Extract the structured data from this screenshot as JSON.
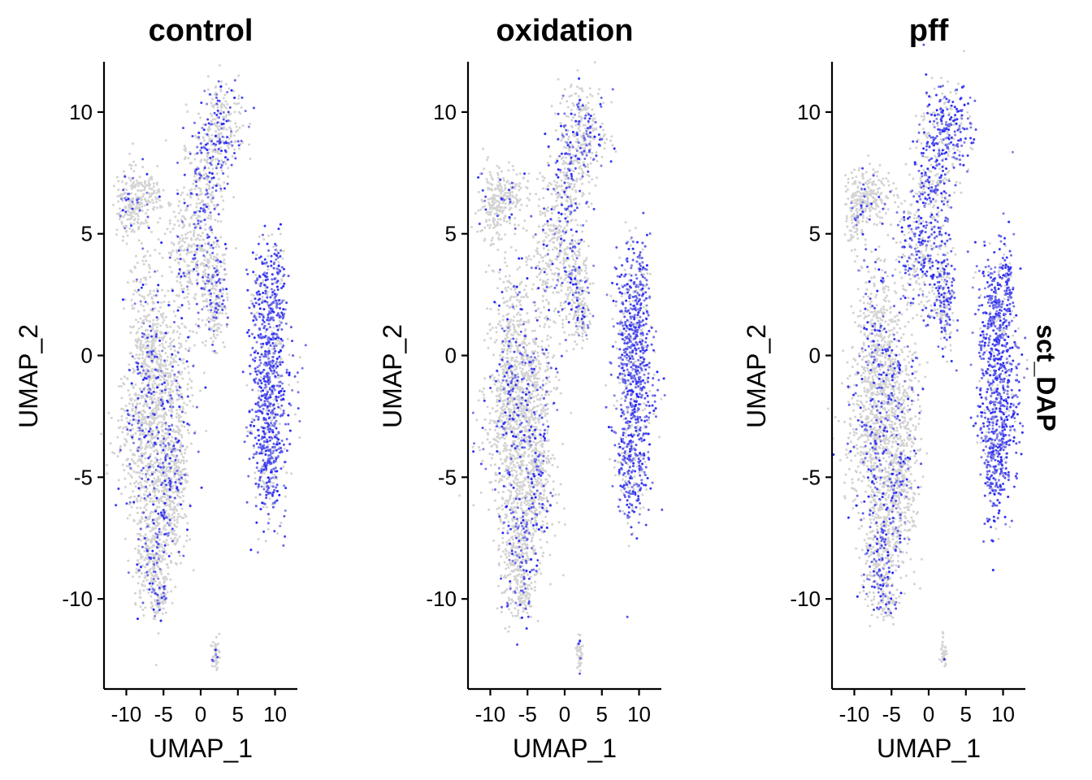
{
  "feature_label": "sct_DAP",
  "colors": {
    "low": "#D3D3D3",
    "high": "#0000FF",
    "mid": "#9C7CE8"
  },
  "chart_data": [
    {
      "type": "scatter",
      "title": "control",
      "xlabel": "UMAP_1",
      "ylabel": "UMAP_2",
      "xlim": [
        -13,
        13
      ],
      "ylim": [
        -13.7,
        12
      ],
      "xticks": [
        -10,
        -5,
        0,
        5,
        10
      ],
      "xtick_labels": [
        "-10",
        "-5",
        "0",
        "5",
        "10"
      ],
      "yticks": [
        -10,
        -5,
        0,
        5,
        10
      ],
      "ytick_labels": [
        "-10",
        "-5",
        "0",
        "5",
        "10"
      ],
      "clusters_summary": [
        {
          "region": "upper-left tail",
          "x": [
            -11,
            -5.5
          ],
          "y": [
            4,
            8
          ],
          "expression": "low"
        },
        {
          "region": "upper arm",
          "x": [
            -4,
            5.5
          ],
          "y": [
            1,
            11
          ],
          "expression": "mixed"
        },
        {
          "region": "main body",
          "x": [
            -10,
            -2
          ],
          "y": [
            -10.5,
            3
          ],
          "expression": "mostly low"
        },
        {
          "region": "right cluster",
          "x": [
            6.5,
            12
          ],
          "y": [
            -6.5,
            4.5
          ],
          "expression": "high"
        },
        {
          "region": "small island",
          "x": [
            1.5,
            2.5
          ],
          "y": [
            -12.5,
            -11.5
          ],
          "expression": "low"
        }
      ]
    },
    {
      "type": "scatter",
      "title": "oxidation",
      "xlabel": "UMAP_1",
      "ylabel": "UMAP_2",
      "xlim": [
        -13,
        13
      ],
      "ylim": [
        -13.7,
        12
      ],
      "xticks": [
        -10,
        -5,
        0,
        5,
        10
      ],
      "xtick_labels": [
        "-10",
        "-5",
        "0",
        "5",
        "10"
      ],
      "yticks": [
        -10,
        -5,
        0,
        5,
        10
      ],
      "ytick_labels": [
        "-10",
        "-5",
        "0",
        "5",
        "10"
      ],
      "clusters_summary": [
        {
          "region": "upper-left tail",
          "x": [
            -11,
            -5.5
          ],
          "y": [
            4,
            7.5
          ],
          "expression": "low"
        },
        {
          "region": "upper arm",
          "x": [
            -4,
            5.5
          ],
          "y": [
            1,
            11
          ],
          "expression": "mixed"
        },
        {
          "region": "main body",
          "x": [
            -10,
            -2
          ],
          "y": [
            -10.5,
            3
          ],
          "expression": "mostly low"
        },
        {
          "region": "right cluster",
          "x": [
            6.5,
            12
          ],
          "y": [
            -6.5,
            4.5
          ],
          "expression": "high"
        },
        {
          "region": "small island",
          "x": [
            1.5,
            2.5
          ],
          "y": [
            -12.5,
            -11.5
          ],
          "expression": "low"
        }
      ]
    },
    {
      "type": "scatter",
      "title": "pff",
      "xlabel": "UMAP_1",
      "ylabel": "UMAP_2",
      "xlim": [
        -13,
        13
      ],
      "ylim": [
        -13.7,
        12
      ],
      "xticks": [
        -10,
        -5,
        0,
        5,
        10
      ],
      "xtick_labels": [
        "-10",
        "-5",
        "0",
        "5",
        "10"
      ],
      "yticks": [
        -10,
        -5,
        0,
        5,
        10
      ],
      "ytick_labels": [
        "-10",
        "-5",
        "0",
        "5",
        "10"
      ],
      "clusters_summary": [
        {
          "region": "upper-left tail",
          "x": [
            -11,
            -5.5
          ],
          "y": [
            4.5,
            8
          ],
          "expression": "low"
        },
        {
          "region": "upper arm",
          "x": [
            -4,
            5.5
          ],
          "y": [
            1,
            11
          ],
          "expression": "high"
        },
        {
          "region": "main body",
          "x": [
            -10,
            -2
          ],
          "y": [
            -10.5,
            3
          ],
          "expression": "mixed"
        },
        {
          "region": "right cluster",
          "x": [
            6.5,
            12
          ],
          "y": [
            -6.5,
            4.5
          ],
          "expression": "high"
        },
        {
          "region": "small island",
          "x": [
            1.5,
            2.5
          ],
          "y": [
            -12.5,
            -11.5
          ],
          "expression": "low"
        }
      ]
    }
  ]
}
